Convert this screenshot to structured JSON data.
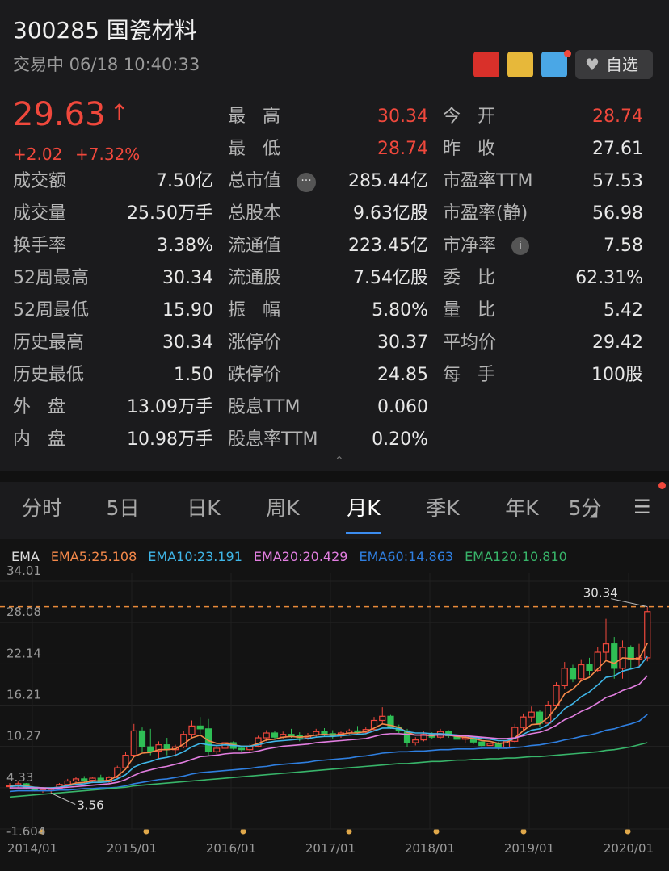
{
  "header": {
    "title": "300285 国瓷材料",
    "status": "交易中 06/18 10:40:33",
    "watch": "自选"
  },
  "quote": {
    "price": "29.63",
    "change": "+2.02",
    "change_pct": "+7.32%"
  },
  "top_stats": [
    [
      [
        "最 高",
        "30.34"
      ],
      [
        "今 开",
        "28.74"
      ]
    ],
    [
      [
        "最 低",
        "28.74"
      ],
      [
        "昨 收",
        "27.61"
      ]
    ]
  ],
  "stats": [
    [
      [
        "成交额",
        "7.50亿"
      ],
      [
        "总市值",
        "285.44亿"
      ],
      [
        "市盈率TTM",
        "57.53"
      ]
    ],
    [
      [
        "成交量",
        "25.50万手"
      ],
      [
        "总股本",
        "9.63亿股"
      ],
      [
        "市盈率(静)",
        "56.98"
      ]
    ],
    [
      [
        "换手率",
        "3.38%"
      ],
      [
        "流通值",
        "223.45亿"
      ],
      [
        "市净率",
        "7.58"
      ]
    ],
    [
      [
        "52周最高",
        "30.34"
      ],
      [
        "流通股",
        "7.54亿股"
      ],
      [
        "委 比",
        "62.31%"
      ]
    ],
    [
      [
        "52周最低",
        "15.90"
      ],
      [
        "振 幅",
        "5.80%"
      ],
      [
        "量 比",
        "5.42"
      ]
    ],
    [
      [
        "历史最高",
        "30.34"
      ],
      [
        "涨停价",
        "30.37"
      ],
      [
        "平均价",
        "29.42"
      ]
    ],
    [
      [
        "历史最低",
        "1.50"
      ],
      [
        "跌停价",
        "24.85"
      ],
      [
        "每 手",
        "100股"
      ]
    ],
    [
      [
        "外 盘",
        "13.09万手"
      ],
      [
        "股息TTM",
        "0.060"
      ]
    ],
    [
      [
        "内 盘",
        "10.98万手"
      ],
      [
        "股息率TTM",
        "0.20%"
      ]
    ]
  ],
  "tabs": [
    "分时",
    "5日",
    "日K",
    "周K",
    "月K",
    "季K",
    "年K",
    "5分"
  ],
  "active_tab": "月K",
  "chart_data": {
    "type": "candlestick",
    "legend_title": "EMA",
    "categories": [
      "2014/01",
      null,
      null,
      null,
      null,
      null,
      null,
      null,
      null,
      null,
      null,
      null,
      "2015/01",
      null,
      null,
      null,
      null,
      null,
      null,
      null,
      null,
      null,
      null,
      null,
      "2016/01",
      null,
      null,
      null,
      null,
      null,
      null,
      null,
      null,
      null,
      null,
      null,
      "2017/01",
      null,
      null,
      null,
      null,
      null,
      null,
      null,
      null,
      null,
      null,
      null,
      "2018/01",
      null,
      null,
      null,
      null,
      null,
      null,
      null,
      null,
      null,
      null,
      null,
      "2019/01",
      null,
      null,
      null,
      null,
      null,
      null,
      null,
      null,
      null,
      null,
      null,
      "2020/01",
      null,
      null,
      null,
      null,
      null
    ],
    "up_color": "#f0483c",
    "down_color": "#2fbf55",
    "open": [
      4.5,
      4.6,
      4.9,
      4.3,
      4.0,
      4.1,
      4.2,
      4.8,
      5.3,
      5.6,
      5.4,
      5.7,
      5.2,
      5.8,
      7.2,
      9.0,
      12.5,
      10.2,
      9.6,
      10.5,
      9.8,
      10.2,
      12.0,
      13.2,
      12.8,
      9.5,
      10.0,
      10.8,
      10.0,
      9.8,
      10.3,
      11.5,
      12.2,
      11.6,
      12.0,
      11.8,
      11.5,
      11.9,
      12.4,
      12.1,
      11.8,
      12.2,
      12.5,
      12.3,
      12.7,
      14.0,
      14.6,
      13.0,
      12.5,
      10.8,
      11.2,
      12.0,
      11.6,
      12.4,
      11.8,
      11.3,
      11.5,
      10.9,
      10.4,
      10.7,
      10.1,
      11.0,
      13.0,
      14.5,
      15.2,
      13.6,
      16.2,
      19.0,
      21.5,
      20.0,
      22.0,
      21.2,
      23.8,
      25.0,
      21.5,
      24.5,
      22.8,
      23.0
    ],
    "high": [
      5.0,
      5.2,
      5.0,
      4.5,
      4.3,
      4.4,
      5.0,
      5.6,
      5.9,
      6.0,
      5.8,
      6.2,
      6.0,
      7.5,
      9.5,
      13.5,
      13.0,
      12.8,
      11.0,
      11.5,
      10.5,
      12.5,
      14.0,
      14.5,
      14.2,
      10.5,
      11.2,
      11.0,
      10.4,
      10.6,
      11.8,
      12.6,
      12.5,
      12.4,
      12.8,
      12.3,
      12.2,
      12.8,
      12.9,
      12.6,
      12.4,
      12.8,
      13.2,
      13.0,
      14.5,
      15.9,
      14.8,
      13.4,
      12.8,
      11.6,
      12.4,
      12.3,
      12.8,
      12.6,
      12.2,
      11.9,
      11.8,
      11.2,
      11.0,
      10.9,
      11.2,
      13.5,
      15.0,
      16.0,
      15.5,
      16.8,
      19.5,
      22.4,
      22.0,
      22.8,
      23.0,
      24.5,
      28.6,
      26.0,
      25.5,
      24.8,
      25.0,
      30.34
    ],
    "low": [
      4.2,
      4.4,
      4.1,
      3.8,
      3.6,
      3.56,
      4.1,
      4.6,
      5.0,
      5.1,
      5.0,
      5.0,
      5.0,
      5.6,
      7.0,
      8.8,
      9.5,
      9.0,
      8.5,
      9.0,
      8.8,
      10.0,
      11.5,
      12.0,
      9.0,
      9.0,
      9.6,
      9.8,
      9.4,
      9.5,
      10.1,
      11.0,
      11.3,
      11.4,
      11.5,
      11.0,
      11.2,
      11.6,
      11.8,
      11.4,
      11.5,
      12.0,
      12.0,
      12.1,
      12.5,
      13.5,
      12.8,
      12.2,
      10.2,
      10.4,
      11.0,
      11.3,
      11.4,
      11.5,
      11.0,
      10.8,
      10.6,
      10.0,
      10.1,
      9.8,
      9.9,
      10.8,
      12.5,
      13.8,
      13.0,
      13.4,
      16.0,
      18.5,
      19.5,
      19.8,
      20.5,
      21.0,
      22.5,
      20.0,
      20.0,
      21.5,
      21.8,
      22.5
    ],
    "close": [
      4.6,
      4.9,
      4.3,
      4.0,
      4.1,
      4.2,
      4.8,
      5.3,
      5.6,
      5.4,
      5.7,
      5.2,
      5.8,
      7.2,
      9.0,
      12.5,
      10.2,
      9.6,
      10.5,
      9.8,
      10.2,
      12.0,
      13.2,
      12.8,
      9.5,
      10.0,
      10.8,
      10.0,
      9.8,
      10.3,
      11.5,
      12.2,
      11.6,
      12.0,
      11.8,
      11.5,
      11.9,
      12.4,
      12.1,
      11.8,
      12.2,
      12.5,
      12.3,
      12.7,
      14.0,
      14.6,
      13.0,
      12.5,
      10.8,
      11.2,
      12.0,
      11.6,
      12.4,
      11.8,
      11.3,
      11.5,
      10.9,
      10.4,
      10.7,
      10.1,
      11.0,
      13.0,
      14.5,
      15.2,
      13.6,
      16.2,
      19.0,
      21.5,
      20.0,
      22.0,
      21.2,
      23.8,
      25.0,
      21.5,
      24.5,
      22.8,
      23.0,
      29.63
    ],
    "series": [
      {
        "name": "EMA5:25.108",
        "color": "#f5894a",
        "values": [
          4.6,
          4.7,
          4.6,
          4.4,
          4.3,
          4.3,
          4.4,
          4.7,
          5.0,
          5.1,
          5.3,
          5.3,
          5.4,
          6.0,
          7.0,
          8.8,
          9.3,
          9.4,
          9.8,
          9.8,
          9.9,
          10.6,
          11.5,
          11.9,
          11.1,
          10.7,
          10.7,
          10.5,
          10.3,
          10.3,
          10.7,
          11.2,
          11.3,
          11.6,
          11.7,
          11.6,
          11.7,
          11.9,
          12.0,
          11.9,
          12.0,
          12.2,
          12.2,
          12.4,
          12.9,
          13.5,
          13.3,
          13.0,
          12.3,
          11.9,
          11.9,
          11.8,
          12.0,
          11.9,
          11.7,
          11.6,
          11.4,
          11.1,
          11.0,
          10.7,
          10.8,
          11.5,
          12.5,
          13.4,
          13.5,
          14.4,
          15.9,
          17.8,
          18.5,
          19.7,
          20.2,
          21.4,
          22.6,
          22.2,
          23.0,
          22.9,
          22.9,
          25.108
        ]
      },
      {
        "name": "EMA10:23.191",
        "color": "#3fb6e8",
        "values": [
          4.5,
          4.6,
          4.5,
          4.4,
          4.3,
          4.3,
          4.4,
          4.6,
          4.8,
          4.9,
          5.1,
          5.1,
          5.2,
          5.6,
          6.2,
          7.3,
          7.8,
          8.1,
          8.5,
          8.7,
          9.0,
          9.5,
          10.2,
          10.7,
          10.5,
          10.4,
          10.5,
          10.4,
          10.3,
          10.3,
          10.5,
          10.8,
          11.0,
          11.1,
          11.2,
          11.3,
          11.4,
          11.6,
          11.7,
          11.7,
          11.8,
          11.9,
          12.0,
          12.1,
          12.5,
          12.9,
          12.9,
          12.8,
          12.4,
          12.2,
          12.2,
          12.1,
          12.1,
          12.0,
          11.9,
          11.8,
          11.6,
          11.4,
          11.3,
          11.1,
          11.1,
          11.4,
          12.0,
          12.6,
          12.8,
          13.4,
          14.4,
          15.7,
          16.4,
          17.4,
          18.1,
          19.1,
          20.2,
          20.4,
          21.1,
          21.4,
          21.7,
          23.191
        ]
      },
      {
        "name": "EMA20:20.429",
        "color": "#e27ee0",
        "values": [
          4.3,
          4.3,
          4.3,
          4.3,
          4.3,
          4.2,
          4.3,
          4.4,
          4.5,
          4.6,
          4.7,
          4.8,
          4.9,
          5.1,
          5.5,
          6.1,
          6.6,
          6.9,
          7.2,
          7.4,
          7.7,
          8.0,
          8.4,
          8.8,
          8.9,
          9.0,
          9.2,
          9.3,
          9.3,
          9.4,
          9.6,
          9.9,
          10.1,
          10.3,
          10.4,
          10.5,
          10.6,
          10.8,
          10.9,
          11.0,
          11.1,
          11.2,
          11.3,
          11.4,
          11.7,
          12.0,
          12.1,
          12.1,
          12.0,
          11.9,
          11.9,
          11.9,
          11.9,
          11.9,
          11.8,
          11.8,
          11.7,
          11.6,
          11.5,
          11.4,
          11.4,
          11.5,
          11.8,
          12.1,
          12.3,
          12.7,
          13.3,
          14.1,
          14.6,
          15.3,
          15.8,
          16.5,
          17.3,
          17.7,
          18.3,
          18.7,
          19.2,
          20.429
        ]
      },
      {
        "name": "EMA60:14.863",
        "color": "#2f7fe0",
        "values": [
          3.8,
          3.9,
          3.9,
          3.9,
          3.9,
          3.9,
          4.0,
          4.0,
          4.1,
          4.2,
          4.2,
          4.3,
          4.3,
          4.4,
          4.6,
          4.9,
          5.1,
          5.3,
          5.5,
          5.6,
          5.8,
          6.0,
          6.3,
          6.5,
          6.6,
          6.7,
          6.8,
          6.9,
          7.0,
          7.1,
          7.3,
          7.4,
          7.6,
          7.7,
          7.8,
          7.9,
          8.0,
          8.2,
          8.3,
          8.4,
          8.5,
          8.6,
          8.8,
          8.9,
          9.1,
          9.3,
          9.4,
          9.5,
          9.5,
          9.6,
          9.6,
          9.7,
          9.8,
          9.8,
          9.9,
          9.9,
          9.9,
          10.0,
          10.0,
          10.0,
          10.0,
          10.1,
          10.2,
          10.4,
          10.5,
          10.7,
          10.9,
          11.2,
          11.4,
          11.7,
          11.9,
          12.2,
          12.6,
          12.8,
          13.2,
          13.5,
          13.9,
          14.863
        ]
      },
      {
        "name": "EMA120:10.810",
        "color": "#38b56a",
        "values": [
          3.0,
          3.1,
          3.2,
          3.3,
          3.4,
          3.5,
          3.6,
          3.7,
          3.8,
          3.9,
          4.0,
          4.1,
          4.2,
          4.3,
          4.4,
          4.6,
          4.7,
          4.8,
          4.9,
          5.0,
          5.1,
          5.2,
          5.3,
          5.4,
          5.5,
          5.6,
          5.7,
          5.8,
          5.9,
          6.0,
          6.1,
          6.2,
          6.3,
          6.4,
          6.5,
          6.6,
          6.7,
          6.8,
          6.9,
          7.0,
          7.1,
          7.2,
          7.3,
          7.4,
          7.5,
          7.6,
          7.7,
          7.8,
          7.8,
          7.9,
          8.0,
          8.1,
          8.1,
          8.2,
          8.3,
          8.3,
          8.4,
          8.4,
          8.5,
          8.5,
          8.6,
          8.6,
          8.7,
          8.8,
          8.8,
          8.9,
          9.0,
          9.1,
          9.2,
          9.3,
          9.4,
          9.5,
          9.7,
          9.8,
          10.0,
          10.2,
          10.5,
          10.81
        ]
      }
    ],
    "ylim": [
      -1.604,
      34.01
    ],
    "yticks": [
      34.01,
      28.08,
      22.14,
      16.21,
      10.27,
      4.33,
      -1.604
    ],
    "max_marker": {
      "value": 30.34,
      "label": "30.34"
    },
    "min_marker": {
      "value": 3.56,
      "label": "3.56"
    }
  }
}
